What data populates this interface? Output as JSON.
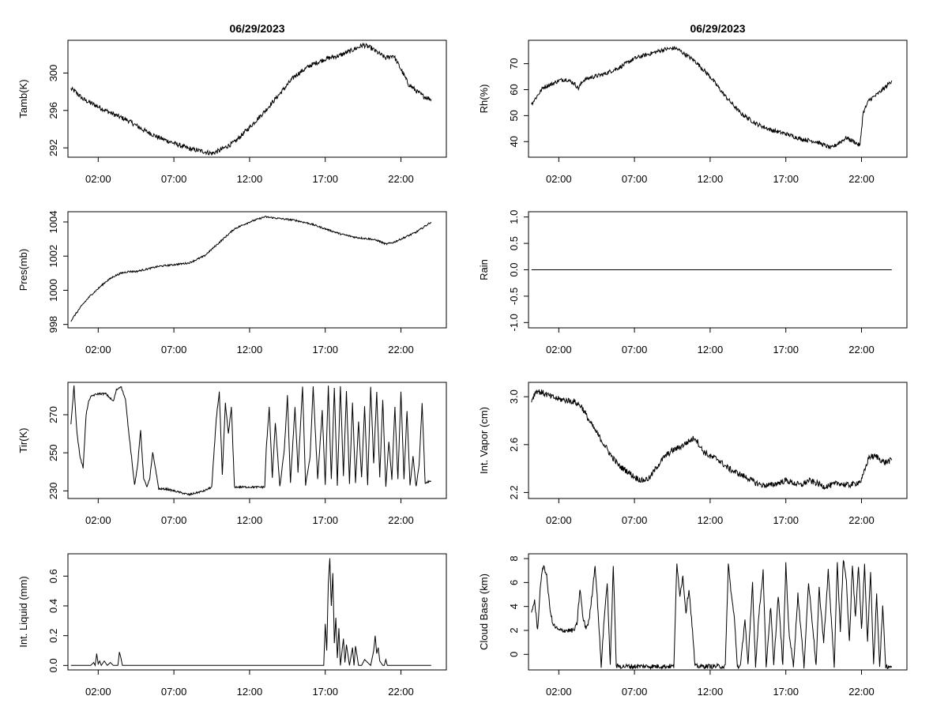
{
  "chart_data": [
    {
      "id": "tamb",
      "type": "line",
      "title": "06/29/2023",
      "ylabel": "Tamb(K)",
      "xlim": [
        0,
        25
      ],
      "ylim": [
        291,
        303.5
      ],
      "xticks": [
        2,
        7,
        12,
        17,
        22
      ],
      "xtick_labels": [
        "02:00",
        "07:00",
        "12:00",
        "17:00",
        "22:00"
      ],
      "yticks": [
        292,
        296,
        300
      ],
      "ytick_labels": [
        "292",
        "296",
        "300"
      ],
      "noise": 0.25,
      "x": [
        0.2,
        0.5,
        1,
        2,
        3,
        4,
        5,
        6,
        7,
        8,
        9,
        9.5,
        10,
        11,
        12,
        13,
        14,
        15,
        16,
        17,
        18,
        19,
        19.5,
        20,
        21,
        21.5,
        22,
        22.5,
        23,
        23.5,
        24
      ],
      "values": [
        298.3,
        298,
        297.2,
        296.4,
        295.6,
        294.9,
        293.9,
        293.1,
        292.5,
        291.9,
        291.6,
        291.4,
        291.7,
        292.6,
        294.2,
        295.9,
        297.8,
        299.7,
        300.8,
        301.5,
        301.9,
        302.6,
        303,
        302.7,
        301.6,
        301.9,
        300.4,
        298.8,
        298.1,
        297.5,
        297.2
      ]
    },
    {
      "id": "rh",
      "type": "line",
      "title": "06/29/2023",
      "ylabel": "Rh(%)",
      "xlim": [
        0,
        25
      ],
      "ylim": [
        34,
        79
      ],
      "xticks": [
        2,
        7,
        12,
        17,
        22
      ],
      "xtick_labels": [
        "02:00",
        "07:00",
        "12:00",
        "17:00",
        "22:00"
      ],
      "yticks": [
        40,
        50,
        60,
        70
      ],
      "ytick_labels": [
        "40",
        "50",
        "60",
        "70"
      ],
      "noise": 0.8,
      "x": [
        0.2,
        0.5,
        1,
        1.5,
        2,
        2.5,
        3,
        3.3,
        3.6,
        4,
        5,
        6,
        7,
        8,
        9,
        9.7,
        10,
        11,
        12,
        13,
        14,
        15,
        16,
        17,
        18,
        19,
        20,
        20.5,
        21,
        21.5,
        21.9,
        22.1,
        22.5,
        23,
        23.5,
        24
      ],
      "values": [
        54.5,
        57,
        61,
        62,
        63.5,
        64,
        62.5,
        60.5,
        63.5,
        64.5,
        66,
        68.5,
        72,
        73.8,
        75.5,
        76,
        75,
        71,
        65,
        57.5,
        51,
        47,
        44.5,
        43,
        41,
        40,
        37.5,
        39.5,
        41.5,
        40,
        38.5,
        51,
        56,
        58,
        60.5,
        63.5
      ]
    },
    {
      "id": "pres",
      "type": "line",
      "title": "",
      "ylabel": "Pres(mb)",
      "xlim": [
        0,
        25
      ],
      "ylim": [
        997.8,
        1004.6
      ],
      "xticks": [
        2,
        7,
        12,
        17,
        22
      ],
      "xtick_labels": [
        "02:00",
        "07:00",
        "12:00",
        "17:00",
        "22:00"
      ],
      "yticks": [
        998,
        1000,
        1002,
        1004
      ],
      "ytick_labels": [
        "998",
        "1000",
        "1002",
        "1004"
      ],
      "noise": 0.05,
      "x": [
        0.2,
        0.5,
        1,
        1.5,
        2,
        2.5,
        3,
        3.5,
        4,
        4.5,
        5,
        6,
        7,
        8,
        9,
        10,
        11,
        12,
        13,
        14,
        15,
        16,
        17,
        18,
        19,
        20,
        20.5,
        21,
        21.5,
        22,
        22.5,
        23,
        23.5,
        24
      ],
      "values": [
        998.2,
        998.6,
        999.2,
        999.7,
        1000.1,
        1000.5,
        1000.8,
        1001,
        1001.1,
        1001.1,
        1001.2,
        1001.4,
        1001.5,
        1001.6,
        1002,
        1002.8,
        1003.6,
        1004,
        1004.3,
        1004.2,
        1004.1,
        1003.9,
        1003.6,
        1003.3,
        1003.1,
        1003,
        1002.9,
        1002.7,
        1002.8,
        1003,
        1003.2,
        1003.4,
        1003.7,
        1004
      ]
    },
    {
      "id": "rain",
      "type": "line",
      "title": "",
      "ylabel": "Rain",
      "xlim": [
        0,
        25
      ],
      "ylim": [
        -1.1,
        1.1
      ],
      "xticks": [
        2,
        7,
        12,
        17,
        22
      ],
      "xtick_labels": [
        "02:00",
        "07:00",
        "12:00",
        "17:00",
        "22:00"
      ],
      "yticks": [
        -1,
        -0.5,
        0,
        0.5,
        1
      ],
      "ytick_labels": [
        "-1.0",
        "-0.5",
        "0.0",
        "0.5",
        "1.0"
      ],
      "noise": 0,
      "x": [
        0.2,
        24
      ],
      "values": [
        0,
        0
      ]
    },
    {
      "id": "tir",
      "type": "line",
      "title": "",
      "ylabel": "Tir(K)",
      "xlim": [
        0,
        25
      ],
      "ylim": [
        226,
        287
      ],
      "xticks": [
        2,
        7,
        12,
        17,
        22
      ],
      "xtick_labels": [
        "02:00",
        "07:00",
        "12:00",
        "17:00",
        "22:00"
      ],
      "yticks": [
        230,
        250,
        270
      ],
      "ytick_labels": [
        "230",
        "250",
        "270"
      ],
      "noise": 0.5,
      "x": [
        0.2,
        0.4,
        0.6,
        0.8,
        1,
        1.2,
        1.4,
        1.6,
        2,
        2.5,
        3,
        3.2,
        3.5,
        3.8,
        4,
        4.2,
        4.4,
        4.6,
        4.8,
        5,
        5.2,
        5.4,
        5.6,
        5.8,
        6,
        6.5,
        7,
        7.5,
        8,
        9,
        9.5,
        9.8,
        10,
        10.2,
        10.4,
        10.6,
        10.8,
        11,
        11.5,
        12,
        12.5,
        13,
        13.1,
        13.3,
        13.5,
        13.7,
        14,
        14.3,
        14.5,
        14.7,
        15,
        15.2,
        15.5,
        15.7,
        16,
        16.2,
        16.5,
        16.8,
        17,
        17.2,
        17.4,
        17.6,
        17.8,
        18,
        18.2,
        18.4,
        18.6,
        18.8,
        19,
        19.2,
        19.4,
        19.6,
        19.8,
        20,
        20.2,
        20.4,
        20.6,
        20.8,
        21,
        21.2,
        21.4,
        21.6,
        21.8,
        22,
        22.2,
        22.4,
        22.6,
        22.8,
        23,
        23.2,
        23.4,
        23.6,
        23.8,
        24
      ],
      "values": [
        265,
        285,
        260,
        248,
        242,
        270,
        278,
        280,
        281,
        281,
        277,
        283,
        285,
        278,
        262,
        248,
        233,
        243,
        262,
        237,
        232,
        236,
        250,
        241,
        231,
        231,
        230,
        229,
        228,
        230,
        232,
        268,
        282,
        238,
        276,
        260,
        274,
        232,
        232,
        232,
        232,
        232,
        252,
        274,
        237,
        266,
        232,
        252,
        280,
        234,
        274,
        240,
        285,
        233,
        248,
        285,
        236,
        272,
        233,
        285,
        236,
        284,
        233,
        285,
        238,
        282,
        234,
        276,
        234,
        266,
        237,
        274,
        233,
        285,
        244,
        282,
        237,
        278,
        232,
        256,
        236,
        274,
        236,
        282,
        236,
        272,
        233,
        248,
        232,
        244,
        276,
        234,
        235,
        235
      ]
    },
    {
      "id": "vapor",
      "type": "line",
      "title": "",
      "ylabel": "Int. Vapor (cm)",
      "xlim": [
        0,
        25
      ],
      "ylim": [
        2.15,
        3.12
      ],
      "xticks": [
        2,
        7,
        12,
        17,
        22
      ],
      "xtick_labels": [
        "02:00",
        "07:00",
        "12:00",
        "17:00",
        "22:00"
      ],
      "yticks": [
        2.2,
        2.6,
        3.0
      ],
      "ytick_labels": [
        "2.2",
        "2.6",
        "3.0"
      ],
      "noise": 0.025,
      "x": [
        0.2,
        0.5,
        1,
        1.5,
        2,
        2.5,
        3,
        3.5,
        4,
        4.5,
        5,
        5.5,
        6,
        6.5,
        7,
        7.5,
        8,
        8.5,
        9,
        9.5,
        10,
        10.5,
        11,
        11.5,
        12,
        12.5,
        13,
        13.5,
        14,
        14.5,
        15,
        15.5,
        16,
        16.5,
        17,
        17.5,
        18,
        18.5,
        19,
        19.5,
        20,
        20.5,
        21,
        21.5,
        22,
        22.5,
        23,
        23.5,
        24
      ],
      "values": [
        2.97,
        3.05,
        3.03,
        3.0,
        2.98,
        2.97,
        2.96,
        2.92,
        2.8,
        2.7,
        2.6,
        2.5,
        2.42,
        2.38,
        2.33,
        2.3,
        2.32,
        2.42,
        2.5,
        2.55,
        2.58,
        2.62,
        2.66,
        2.55,
        2.5,
        2.48,
        2.42,
        2.38,
        2.35,
        2.32,
        2.28,
        2.26,
        2.26,
        2.28,
        2.3,
        2.28,
        2.26,
        2.3,
        2.28,
        2.25,
        2.26,
        2.28,
        2.26,
        2.27,
        2.3,
        2.5,
        2.5,
        2.45,
        2.47
      ]
    },
    {
      "id": "liquid",
      "type": "line",
      "title": "",
      "ylabel": "Int. Liquid (mm)",
      "xlim": [
        0,
        25
      ],
      "ylim": [
        -0.03,
        0.75
      ],
      "xticks": [
        2,
        7,
        12,
        17,
        22
      ],
      "xtick_labels": [
        "02:00",
        "07:00",
        "12:00",
        "17:00",
        "22:00"
      ],
      "yticks": [
        0,
        0.2,
        0.4,
        0.6
      ],
      "ytick_labels": [
        "0.0",
        "0.2",
        "0.4",
        "0.6"
      ],
      "noise": 0,
      "x": [
        0.2,
        1.5,
        1.7,
        1.8,
        1.9,
        2.0,
        2.1,
        2.2,
        2.4,
        2.6,
        2.8,
        3.0,
        3.3,
        3.4,
        3.5,
        3.6,
        16.9,
        17.0,
        17.1,
        17.2,
        17.3,
        17.4,
        17.5,
        17.6,
        17.7,
        17.8,
        17.9,
        18.0,
        18.2,
        18.3,
        18.4,
        18.6,
        18.8,
        18.9,
        19.0,
        19.2,
        19.4,
        19.6,
        20.0,
        20.2,
        20.3,
        20.4,
        20.5,
        20.6,
        20.8,
        20.9,
        21.0,
        21.1,
        24
      ],
      "values": [
        0,
        0,
        0.02,
        0,
        0.08,
        0.01,
        0.03,
        0,
        0.03,
        0,
        0.02,
        0,
        0,
        0.09,
        0.05,
        0,
        0,
        0.28,
        0.1,
        0.55,
        0.72,
        0.4,
        0.62,
        0.15,
        0.32,
        0.05,
        0.25,
        0,
        0.18,
        0.02,
        0.14,
        0,
        0.12,
        0,
        0.13,
        0,
        0,
        0.04,
        0,
        0.1,
        0.2,
        0.08,
        0.12,
        0.03,
        0,
        0,
        0.04,
        0,
        0
      ]
    },
    {
      "id": "cloudbase",
      "type": "line",
      "title": "",
      "ylabel": "Cloud Base (km)",
      "xlim": [
        0,
        25
      ],
      "ylim": [
        -1.3,
        8.4
      ],
      "xticks": [
        2,
        7,
        12,
        17,
        22
      ],
      "xtick_labels": [
        "02:00",
        "07:00",
        "12:00",
        "17:00",
        "22:00"
      ],
      "yticks": [
        0,
        2,
        4,
        6,
        8
      ],
      "ytick_labels": [
        "0",
        "2",
        "4",
        "6",
        "8"
      ],
      "noise": 0.2,
      "x": [
        0.2,
        0.4,
        0.6,
        0.8,
        1.0,
        1.2,
        1.4,
        1.6,
        2.0,
        2.5,
        3.0,
        3.2,
        3.4,
        3.6,
        3.8,
        4.0,
        4.2,
        4.4,
        4.6,
        4.8,
        5.0,
        5.2,
        5.4,
        5.6,
        5.8,
        6.0,
        6.5,
        7,
        8,
        9,
        9.6,
        9.8,
        10,
        10.2,
        10.4,
        10.6,
        10.8,
        11.0,
        11.5,
        12,
        12.5,
        13.0,
        13.2,
        13.4,
        13.6,
        13.8,
        14,
        14.3,
        14.5,
        14.8,
        15,
        15.2,
        15.5,
        15.7,
        16,
        16.2,
        16.5,
        16.8,
        17,
        17.2,
        17.5,
        17.8,
        18,
        18.2,
        18.5,
        18.8,
        19,
        19.2,
        19.5,
        19.8,
        20,
        20.2,
        20.4,
        20.6,
        20.8,
        21,
        21.2,
        21.4,
        21.6,
        21.8,
        22,
        22.2,
        22.4,
        22.6,
        22.8,
        23,
        23.2,
        23.4,
        23.6,
        23.8,
        24
      ],
      "values": [
        3.5,
        4.5,
        2,
        6,
        7.5,
        6.5,
        4,
        2.5,
        2,
        2,
        2,
        2.5,
        5.5,
        3,
        2.2,
        2.8,
        5,
        7.5,
        3.5,
        -1,
        3,
        6,
        -1,
        7.5,
        -1,
        -1,
        -1,
        -1,
        -1,
        -1,
        -1,
        7.5,
        5,
        6.5,
        3.5,
        5.5,
        2.5,
        -1,
        -1,
        -1,
        -1,
        -1,
        7.5,
        5,
        3,
        -1,
        -1,
        3,
        -1,
        6,
        -1,
        3,
        7,
        -1,
        4,
        -1,
        5,
        -1,
        7.5,
        2,
        -1,
        5,
        2,
        -1,
        6,
        2,
        -1,
        5.5,
        1,
        7,
        3,
        -1,
        7.5,
        2,
        8,
        6,
        1,
        7.5,
        3,
        7.5,
        2,
        7.5,
        1,
        7,
        -1,
        5,
        -1,
        4,
        -1,
        -1,
        -1
      ]
    }
  ]
}
